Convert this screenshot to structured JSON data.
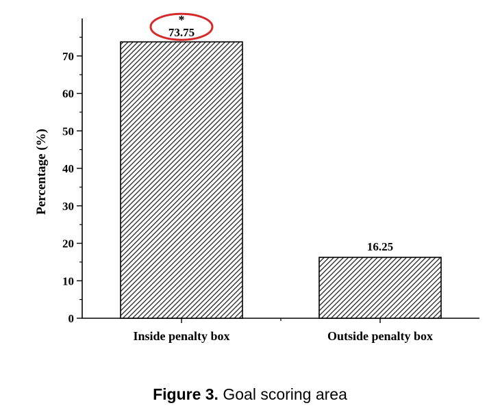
{
  "chart_data": {
    "type": "bar",
    "categories": [
      "Inside penalty box",
      "Outside penalty box"
    ],
    "values": [
      73.75,
      16.25
    ],
    "value_labels": [
      "73.75",
      "16.25"
    ],
    "ylabel": "Percentage (%)",
    "xlabel": "",
    "ylim": [
      0,
      80
    ],
    "yticks": [
      0,
      10,
      20,
      30,
      40,
      50,
      60,
      70
    ],
    "grid": false,
    "bar_fill": "hatched",
    "significance_marker": "*",
    "highlight_color": "#d42a2a",
    "highlighted_bar": "Inside penalty box"
  },
  "caption": {
    "label": "Figure 3.",
    "text": "Goal scoring area"
  }
}
